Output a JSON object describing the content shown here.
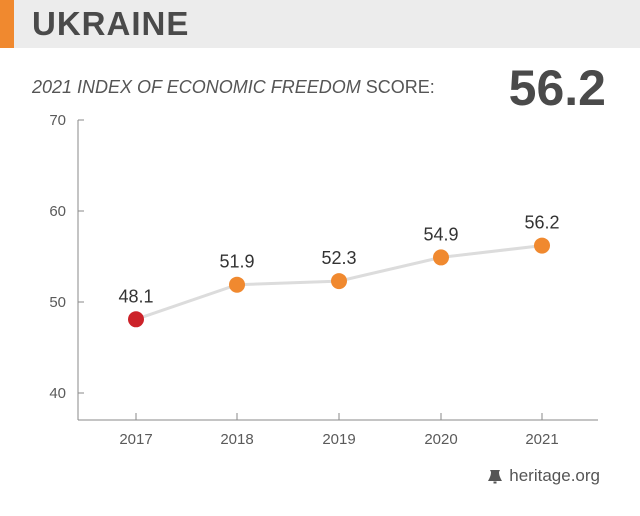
{
  "header": {
    "country": "UKRAINE",
    "subtitle_italic": "2021 INDEX OF ECONOMIC FREEDOM",
    "subtitle_rest": " SCORE:",
    "score": "56.2"
  },
  "footer": {
    "source": "heritage.org",
    "icon": "liberty-bell-icon"
  },
  "colors": {
    "accent": "#f0892f",
    "highlight": "#cc2229",
    "line": "#dcdcdc",
    "axis": "#8a8a8a"
  },
  "chart_data": {
    "type": "line",
    "title": "2021 INDEX OF ECONOMIC FREEDOM SCORE:",
    "x": [
      "2017",
      "2018",
      "2019",
      "2020",
      "2021"
    ],
    "values": [
      48.1,
      51.9,
      52.3,
      54.9,
      56.2
    ],
    "point_colors": [
      "#cc2229",
      "#f0892f",
      "#f0892f",
      "#f0892f",
      "#f0892f"
    ],
    "yticks": [
      40,
      50,
      60,
      70
    ],
    "ylim": [
      37.5,
      70
    ],
    "grid": false
  }
}
